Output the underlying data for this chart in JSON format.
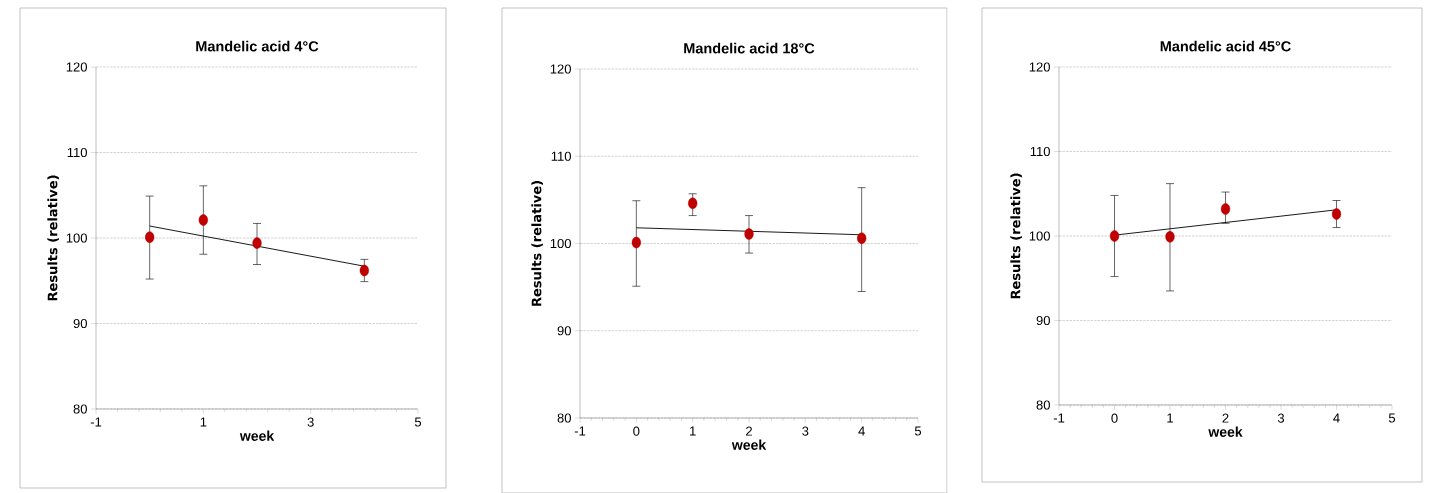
{
  "chart_data": [
    {
      "type": "scatter",
      "title": "Mandelic acid 4°C",
      "xlabel": "week",
      "ylabel": "Results (relative)",
      "xlim": [
        -1,
        5
      ],
      "xticks": [
        -1,
        1,
        3,
        5
      ],
      "ylim": [
        80,
        120
      ],
      "yticks": [
        80,
        90,
        100,
        110,
        120
      ],
      "grid": "y",
      "series": [
        {
          "type": "scatter",
          "marker": "circle",
          "color": "#c00000",
          "x": [
            0,
            1,
            2,
            4
          ],
          "values": [
            100.1,
            102.1,
            99.4,
            96.2
          ],
          "errors": [
            [
              95.2,
              104.9
            ],
            [
              98.1,
              106.1
            ],
            [
              96.9,
              101.7
            ],
            [
              94.9,
              97.5
            ]
          ]
        },
        {
          "type": "line",
          "marker": "none",
          "color": "#000000",
          "x": [
            0,
            4
          ],
          "values": [
            101.4,
            96.7
          ]
        }
      ]
    },
    {
      "type": "scatter",
      "title": "Mandelic acid 18°C",
      "xlabel": "week",
      "ylabel": "Results (relative)",
      "xlim": [
        -1,
        5
      ],
      "xticks": [
        -1,
        0,
        1,
        2,
        3,
        4,
        5
      ],
      "ylim": [
        80,
        120
      ],
      "yticks": [
        80,
        90,
        100,
        110,
        120
      ],
      "grid": "y",
      "series": [
        {
          "type": "scatter",
          "marker": "circle",
          "color": "#c00000",
          "x": [
            0,
            1,
            2,
            4
          ],
          "values": [
            100.1,
            104.6,
            101.1,
            100.6
          ],
          "errors": [
            [
              95.1,
              104.9
            ],
            [
              103.2,
              105.7
            ],
            [
              98.9,
              103.2
            ],
            [
              94.5,
              106.4
            ]
          ]
        },
        {
          "type": "line",
          "marker": "none",
          "color": "#000000",
          "x": [
            0,
            4
          ],
          "values": [
            101.8,
            101.0
          ]
        }
      ]
    },
    {
      "type": "scatter",
      "title": "Mandelic acid 45°C",
      "xlabel": "week",
      "ylabel": "Results (relative)",
      "xlim": [
        -1,
        5
      ],
      "xticks": [
        -1,
        0,
        1,
        2,
        3,
        4,
        5
      ],
      "ylim": [
        80,
        120
      ],
      "yticks": [
        80,
        90,
        100,
        110,
        120
      ],
      "grid": "y",
      "series": [
        {
          "type": "scatter",
          "marker": "circle",
          "color": "#c00000",
          "x": [
            0,
            1,
            2,
            4
          ],
          "values": [
            100.0,
            99.9,
            103.2,
            102.6
          ],
          "errors": [
            [
              95.2,
              104.8
            ],
            [
              93.5,
              106.2
            ],
            [
              101.5,
              105.2
            ],
            [
              101.0,
              104.2
            ]
          ]
        },
        {
          "type": "line",
          "marker": "none",
          "color": "#000000",
          "x": [
            0,
            4
          ],
          "values": [
            100.1,
            103.1
          ]
        }
      ]
    }
  ]
}
